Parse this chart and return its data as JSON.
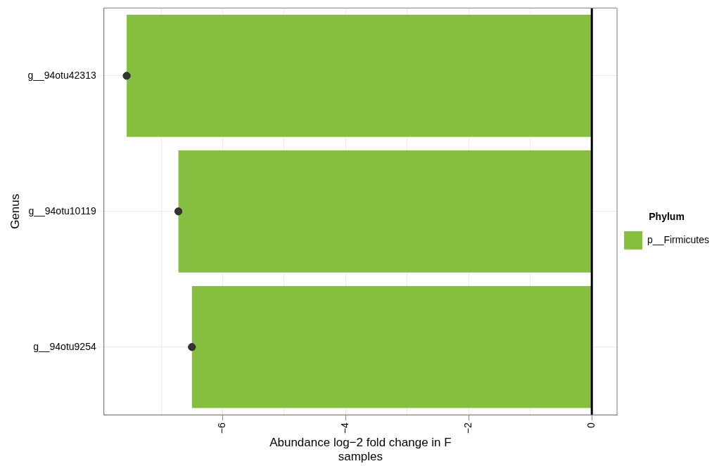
{
  "chart_data": {
    "type": "bar",
    "orientation": "horizontal",
    "xlabel": "Abundance log−2 fold change in F\nsamples",
    "ylabel": "Genus",
    "legend_title": "Phylum",
    "categories": [
      "g__94otu42313",
      "g__94otu10119",
      "g__94otu9254"
    ],
    "series": [
      {
        "name": "p__Firmicutes",
        "color": "#86bf3f",
        "values": [
          -7.56,
          -6.72,
          -6.5
        ]
      },
      {
        "type": "scatter",
        "x": [
          "g__94otu42313",
          "g__94otu10119",
          "g__94otu9254"
        ],
        "color": "#333333",
        "values": [
          -7.56,
          -6.72,
          -6.5
        ]
      }
    ],
    "xlim": [
      -7.93,
      0.41
    ],
    "xticks": [
      {
        "value": -7,
        "label": null
      },
      -6,
      {
        "value": -5,
        "label": null
      },
      -4,
      {
        "value": -3,
        "label": null
      },
      -2,
      {
        "value": -1,
        "label": null
      },
      0
    ],
    "ref_lines": [
      {
        "axis": "x",
        "value": 0,
        "color": "#000000"
      }
    ],
    "grid": true,
    "legend": "right",
    "marker": "circle"
  }
}
